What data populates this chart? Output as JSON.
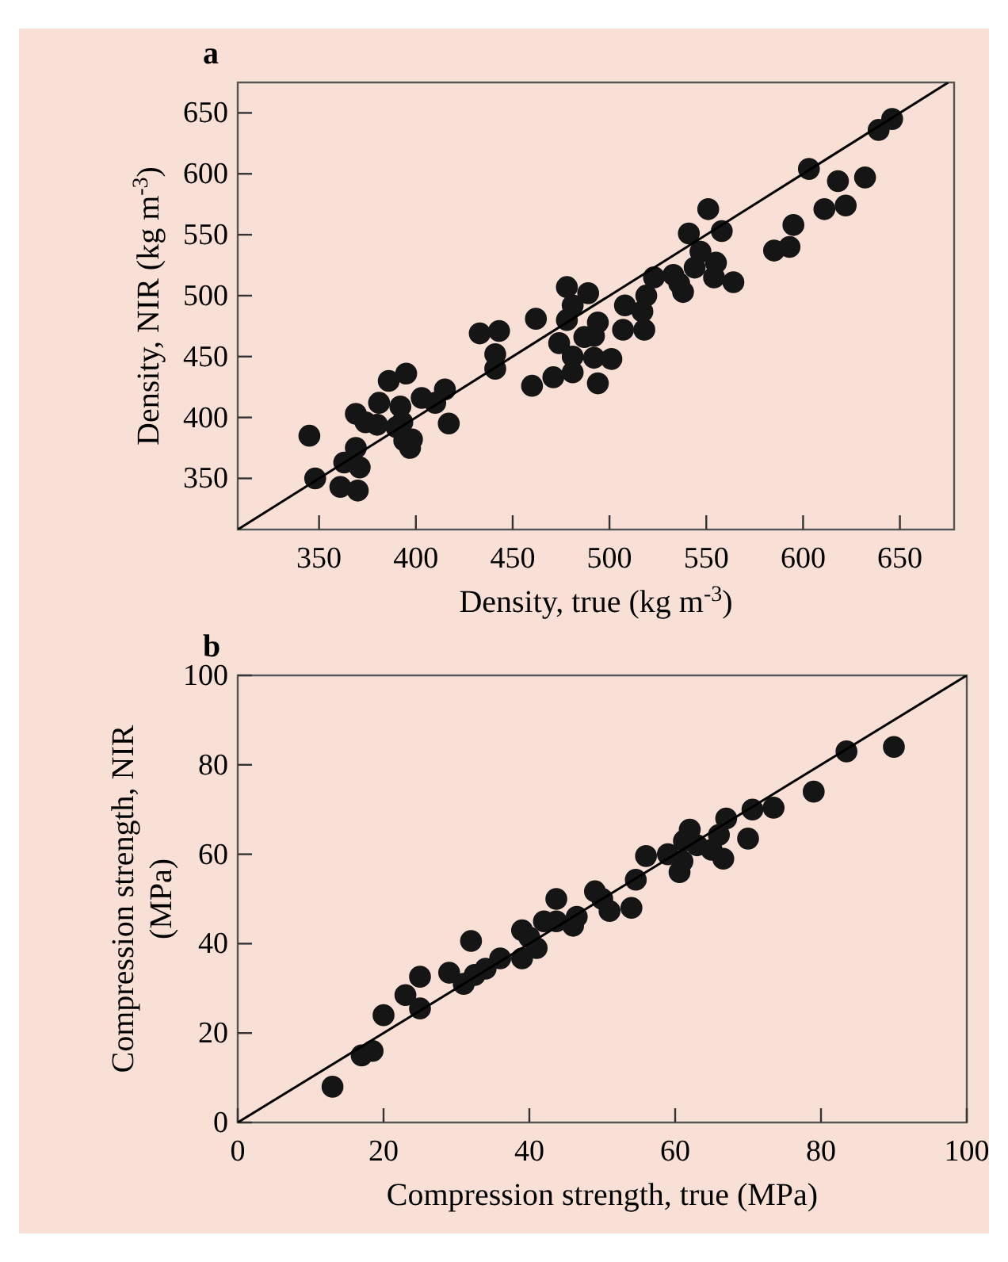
{
  "chart_data": [
    {
      "type": "scatter",
      "annotations": [
        "a"
      ],
      "xlabel": "Density, true (kg m$^{-3}$)",
      "ylabel": "Density, NIR (kg m$^{-3}$)",
      "xlim": [
        308,
        678
      ],
      "ylim": [
        308,
        675
      ],
      "xticks": [
        350,
        400,
        450,
        500,
        550,
        600,
        650
      ],
      "yticks": [
        350,
        400,
        450,
        500,
        550,
        600,
        650
      ],
      "grid": false,
      "series": [
        {
          "marker": "circle",
          "color": "#151515",
          "x": [
            345,
            348,
            361,
            370,
            363,
            369,
            371,
            369,
            374,
            380,
            381,
            386,
            395,
            392,
            390,
            393,
            394,
            398,
            397,
            403,
            410,
            415,
            417,
            433,
            443,
            441,
            441,
            462,
            460,
            471,
            478,
            481,
            478,
            489,
            474,
            481,
            481,
            487,
            492,
            494,
            492,
            494,
            501,
            507,
            508,
            517,
            519,
            518,
            523,
            533,
            538,
            536,
            541,
            547,
            551,
            558,
            555,
            544,
            554,
            564,
            585,
            593,
            595,
            603,
            611,
            618,
            622,
            632,
            639,
            646
          ],
          "values": [
            385,
            350,
            343,
            340,
            363,
            375,
            359,
            403,
            396,
            394,
            412,
            430,
            436,
            409,
            392,
            396,
            381,
            382,
            375,
            416,
            412,
            423,
            395,
            469,
            471,
            452,
            440,
            481,
            426,
            433,
            507,
            492,
            480,
            502,
            461,
            450,
            437,
            466,
            467,
            478,
            449,
            428,
            448,
            472,
            492,
            487,
            500,
            472,
            515,
            517,
            503,
            510,
            551,
            536,
            571,
            553,
            527,
            523,
            515,
            511,
            537,
            540,
            558,
            604,
            571,
            594,
            574,
            597,
            636,
            645
          ]
        },
        {
          "type": "line",
          "marker": "none",
          "color": "#000000",
          "x": [
            308,
            675
          ],
          "values": [
            308,
            675
          ]
        }
      ]
    },
    {
      "type": "scatter",
      "annotations": [
        "b"
      ],
      "xlabel": "Compression strength, true (MPa)",
      "ylabel": "Compression strength, NIR (MPa)",
      "xlim": [
        0,
        100
      ],
      "ylim": [
        0,
        100
      ],
      "xticks": [
        0,
        20,
        40,
        60,
        80,
        100
      ],
      "yticks": [
        0,
        20,
        40,
        60,
        80,
        100
      ],
      "grid": false,
      "series": [
        {
          "marker": "circle",
          "color": "#151515",
          "x": [
            13,
            17,
            18.5,
            20,
            23,
            25,
            25,
            29,
            31,
            32,
            32.5,
            34,
            36,
            39,
            39,
            41,
            40,
            42,
            43.7,
            43.7,
            46,
            46.5,
            49,
            50,
            51,
            54,
            54.6,
            56,
            59,
            60.6,
            61,
            62,
            61.2,
            63,
            65,
            66.6,
            66,
            67,
            70,
            70.6,
            73.5,
            79,
            83.5,
            90
          ],
          "values": [
            8,
            15,
            16,
            24,
            28.5,
            25.5,
            32.6,
            33.5,
            31,
            40.6,
            33,
            34.4,
            36.7,
            36.7,
            43,
            39,
            41.4,
            45,
            50,
            45,
            44,
            46,
            51.7,
            50,
            47.3,
            48,
            54.3,
            59.6,
            60,
            56,
            58.4,
            65.5,
            63,
            62,
            61,
            59,
            64.3,
            68,
            63.5,
            70,
            70.4,
            74,
            83,
            84
          ]
        },
        {
          "type": "line",
          "marker": "none",
          "color": "#000000",
          "x": [
            0,
            100
          ],
          "values": [
            0,
            100
          ]
        }
      ]
    }
  ]
}
